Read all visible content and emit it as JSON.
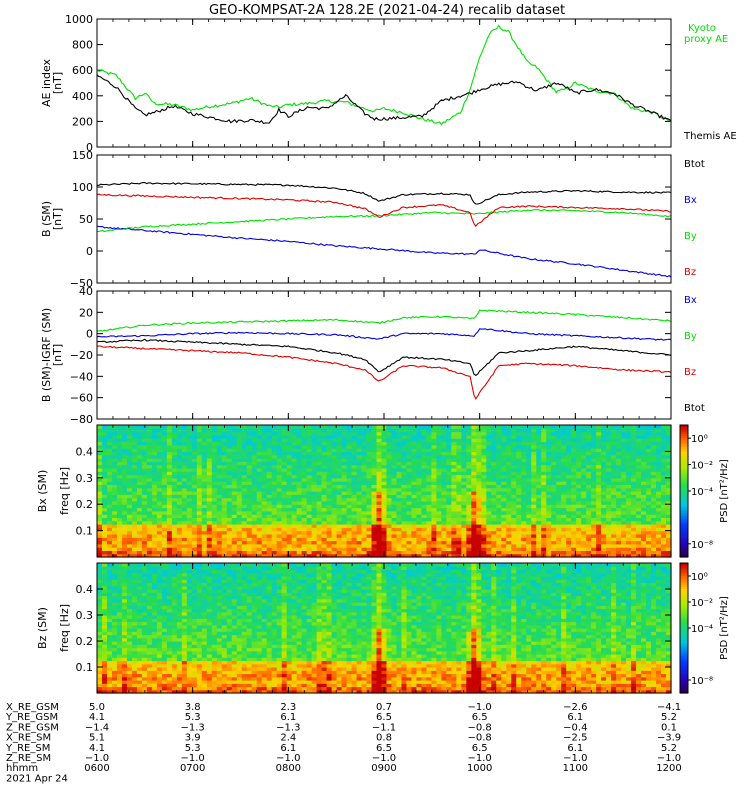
{
  "title": "GEO-KOMPSAT-2A 128.2E (2021-04-24) recalib dataset",
  "colors": {
    "black": "#000000",
    "green": "#00e000",
    "red": "#e00000",
    "blue": "#0000e0"
  },
  "chart_data": [
    {
      "type": "line",
      "id": "ae",
      "ylabel": "AE index",
      "yunit": "[nT]",
      "ylim": [
        0,
        1000
      ],
      "yticks": [
        0,
        200,
        400,
        600,
        800,
        1000
      ],
      "xlim": [
        6.0,
        12.0
      ],
      "series": [
        {
          "name": "Kyoto proxy AE",
          "label_lines": [
            "Kyoto",
            "proxy AE"
          ],
          "color": "#00e000",
          "x": [
            6.0,
            6.2,
            6.4,
            6.5,
            6.6,
            6.8,
            7.0,
            7.2,
            7.4,
            7.6,
            7.8,
            7.9,
            8.0,
            8.2,
            8.4,
            8.6,
            8.8,
            8.9,
            9.0,
            9.2,
            9.4,
            9.6,
            9.8,
            9.9,
            10.0,
            10.1,
            10.2,
            10.3,
            10.4,
            10.5,
            10.6,
            10.8,
            10.9,
            11.0,
            11.2,
            11.4,
            11.6,
            11.8,
            12.0
          ],
          "y": [
            600,
            560,
            380,
            420,
            340,
            330,
            290,
            320,
            340,
            380,
            320,
            310,
            330,
            340,
            360,
            350,
            300,
            280,
            300,
            270,
            220,
            180,
            270,
            450,
            700,
            880,
            940,
            900,
            780,
            660,
            620,
            430,
            450,
            500,
            440,
            420,
            300,
            270,
            200
          ]
        },
        {
          "name": "Themis AE",
          "label_lines": [
            "Themis AE"
          ],
          "color": "#000000",
          "x": [
            6.0,
            6.2,
            6.4,
            6.5,
            6.6,
            6.8,
            7.0,
            7.2,
            7.4,
            7.6,
            7.8,
            7.9,
            8.0,
            8.2,
            8.4,
            8.6,
            8.8,
            8.9,
            9.0,
            9.2,
            9.4,
            9.6,
            9.8,
            9.9,
            10.0,
            10.1,
            10.2,
            10.3,
            10.4,
            10.5,
            10.6,
            10.8,
            10.9,
            11.0,
            11.2,
            11.4,
            11.6,
            11.8,
            12.0
          ],
          "y": [
            560,
            470,
            300,
            250,
            270,
            320,
            260,
            230,
            200,
            210,
            190,
            290,
            240,
            310,
            300,
            400,
            260,
            220,
            220,
            230,
            240,
            360,
            400,
            420,
            450,
            470,
            490,
            500,
            510,
            470,
            440,
            500,
            470,
            420,
            450,
            420,
            330,
            270,
            200
          ]
        }
      ]
    },
    {
      "type": "line",
      "id": "bsm",
      "ylabel": "B (SM)",
      "yunit": "[nT]",
      "ylim": [
        -50,
        150
      ],
      "yticks": [
        -50,
        0,
        50,
        100,
        150
      ],
      "xlim": [
        6.0,
        12.0
      ],
      "series": [
        {
          "name": "Btot",
          "color": "#000000",
          "x": [
            6.0,
            6.5,
            7.0,
            7.5,
            8.0,
            8.5,
            8.8,
            8.95,
            9.2,
            9.6,
            9.9,
            9.95,
            10.2,
            10.5,
            11.0,
            11.5,
            12.0
          ],
          "y": [
            103,
            106,
            105,
            104,
            103,
            98,
            90,
            78,
            88,
            90,
            88,
            72,
            88,
            92,
            94,
            92,
            91
          ]
        },
        {
          "name": "Bx",
          "color": "#0000e0",
          "x": [
            6.0,
            6.5,
            7.0,
            7.5,
            8.0,
            8.5,
            9.0,
            9.5,
            9.95,
            10.0,
            10.5,
            11.0,
            11.5,
            12.0
          ],
          "y": [
            38,
            32,
            26,
            20,
            15,
            8,
            3,
            -3,
            -5,
            2,
            -12,
            -20,
            -30,
            -40
          ]
        },
        {
          "name": "By",
          "color": "#00e000",
          "x": [
            6.0,
            6.5,
            7.0,
            7.5,
            8.0,
            8.5,
            8.95,
            9.5,
            9.95,
            10.5,
            11.0,
            11.5,
            12.0
          ],
          "y": [
            30,
            38,
            42,
            46,
            50,
            54,
            55,
            60,
            58,
            64,
            63,
            60,
            54
          ]
        },
        {
          "name": "Bz",
          "color": "#e00000",
          "x": [
            6.0,
            6.5,
            7.0,
            7.5,
            8.0,
            8.5,
            8.8,
            8.95,
            9.2,
            9.6,
            9.9,
            9.95,
            10.2,
            10.5,
            11.0,
            11.5,
            12.0
          ],
          "y": [
            88,
            86,
            84,
            82,
            80,
            76,
            66,
            53,
            68,
            72,
            60,
            38,
            68,
            70,
            68,
            66,
            62
          ]
        }
      ]
    },
    {
      "type": "line",
      "id": "bmigrf",
      "ylabel": "B (SM)-IGRF (SM)",
      "yunit": "[nT]",
      "ylim": [
        -80,
        40
      ],
      "yticks": [
        -80,
        -60,
        -40,
        -20,
        0,
        20,
        40
      ],
      "xlim": [
        6.0,
        12.0
      ],
      "series": [
        {
          "name": "Bx",
          "color": "#0000e0",
          "x": [
            6.0,
            6.5,
            7.0,
            7.5,
            8.0,
            8.5,
            8.95,
            9.2,
            9.6,
            9.95,
            10.0,
            10.5,
            11.0,
            11.5,
            12.0
          ],
          "y": [
            -3,
            -2,
            0,
            1,
            0,
            -1,
            -5,
            0,
            0,
            -2,
            5,
            0,
            -2,
            -4,
            -6
          ]
        },
        {
          "name": "By",
          "color": "#00e000",
          "x": [
            6.0,
            6.5,
            7.0,
            7.5,
            8.0,
            8.5,
            8.95,
            9.2,
            9.6,
            9.95,
            10.0,
            10.5,
            11.0,
            11.5,
            12.0
          ],
          "y": [
            2,
            8,
            10,
            11,
            12,
            13,
            10,
            15,
            16,
            14,
            22,
            20,
            18,
            15,
            12
          ]
        },
        {
          "name": "Bz",
          "color": "#e00000",
          "x": [
            6.0,
            6.5,
            7.0,
            7.5,
            8.0,
            8.5,
            8.8,
            8.95,
            9.2,
            9.6,
            9.9,
            9.95,
            10.2,
            10.5,
            11.0,
            11.5,
            12.0
          ],
          "y": [
            -12,
            -14,
            -16,
            -18,
            -22,
            -28,
            -34,
            -45,
            -30,
            -32,
            -40,
            -62,
            -30,
            -28,
            -30,
            -34,
            -36
          ]
        },
        {
          "name": "Btot",
          "color": "#000000",
          "x": [
            6.0,
            6.5,
            7.0,
            7.5,
            8.0,
            8.5,
            8.8,
            8.95,
            9.2,
            9.6,
            9.9,
            9.95,
            10.2,
            10.5,
            11.0,
            11.5,
            12.0
          ],
          "y": [
            -8,
            -6,
            -8,
            -10,
            -12,
            -18,
            -24,
            -36,
            -22,
            -24,
            -28,
            -40,
            -18,
            -16,
            -12,
            -16,
            -20
          ]
        }
      ]
    },
    {
      "type": "heatmap",
      "id": "spec_bx",
      "ylabel": "Bx (SM)",
      "ylabel2": "freq [Hz]",
      "ylim": [
        0,
        0.5
      ],
      "yticks": [
        0.1,
        0.2,
        0.3,
        0.4
      ],
      "xlim": [
        6.0,
        12.0
      ],
      "colorbar": {
        "label": "PSD [nT²/Hz]",
        "log_range": [
          -9,
          1
        ],
        "ticks": [
          0,
          -2,
          -4,
          -8
        ]
      },
      "enhancement_times": [
        8.95,
        9.95
      ]
    },
    {
      "type": "heatmap",
      "id": "spec_bz",
      "ylabel": "Bz (SM)",
      "ylabel2": "freq [Hz]",
      "ylim": [
        0,
        0.5
      ],
      "yticks": [
        0.1,
        0.2,
        0.3,
        0.4
      ],
      "xlim": [
        6.0,
        12.0
      ],
      "colorbar": {
        "label": "PSD [nT²/Hz]",
        "log_range": [
          -9,
          1
        ],
        "ticks": [
          0,
          -2,
          -4,
          -8
        ]
      },
      "enhancement_times": [
        8.95,
        9.95
      ]
    }
  ],
  "ephemeris": {
    "rows": [
      {
        "label": "X_RE_GSM",
        "values": [
          "5.0",
          "3.8",
          "2.3",
          "0.7",
          "-1.0",
          "-2.6",
          "-4.1"
        ]
      },
      {
        "label": "Y_RE_GSM",
        "values": [
          "4.1",
          "5.3",
          "6.1",
          "6.5",
          "6.5",
          "6.1",
          "5.2"
        ]
      },
      {
        "label": "Z_RE_GSM",
        "values": [
          "-1.4",
          "-1.3",
          "-1.3",
          "-1.1",
          "-0.8",
          "-0.4",
          "0.1"
        ]
      },
      {
        "label": "X_RE_SM",
        "values": [
          "5.1",
          "3.9",
          "2.4",
          "0.8",
          "-0.8",
          "-2.5",
          "-3.9"
        ]
      },
      {
        "label": "Y_RE_SM",
        "values": [
          "4.1",
          "5.3",
          "6.1",
          "6.5",
          "6.5",
          "6.1",
          "5.2"
        ]
      },
      {
        "label": "Z_RE_SM",
        "values": [
          "-1.0",
          "-1.0",
          "-1.0",
          "-1.0",
          "-1.0",
          "-1.0",
          "-1.0"
        ]
      },
      {
        "label": "hhmm",
        "values": [
          "0600",
          "0700",
          "0800",
          "0900",
          "1000",
          "1100",
          "1200"
        ]
      }
    ],
    "date": "2021 Apr 24"
  }
}
